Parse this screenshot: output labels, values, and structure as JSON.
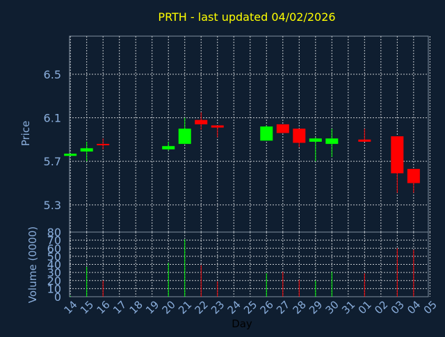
{
  "chart_data": {
    "type": "candlestick",
    "title": "PRTH - last updated 04/02/2026",
    "xlabel": "Day",
    "price_axis": {
      "ylabel": "Price",
      "ylim": [
        5.05,
        6.85
      ],
      "ticks": [
        5.3,
        5.7,
        6.1,
        6.5
      ],
      "tick_labels": [
        "5.3",
        "5.7",
        "6.1",
        "6.5"
      ]
    },
    "volume_axis": {
      "ylabel": "Volume (0000)",
      "ylim": [
        0,
        80
      ],
      "ticks": [
        0,
        10,
        20,
        30,
        40,
        50,
        60,
        70,
        80
      ],
      "tick_labels": [
        "0",
        "10",
        "20",
        "30",
        "40",
        "50",
        "60",
        "70",
        "80"
      ]
    },
    "x_ticks": [
      "14",
      "15",
      "16",
      "17",
      "18",
      "19",
      "20",
      "21",
      "22",
      "23",
      "24",
      "25",
      "26",
      "27",
      "28",
      "29",
      "30",
      "31",
      "01",
      "02",
      "03",
      "04",
      "05"
    ],
    "x_range": [
      -0.05,
      21.9
    ],
    "grid": true,
    "colors": {
      "background": "#0f1e30",
      "plot_border": "#8090a0",
      "grid": "#c8ccd0",
      "title": "#ffff00",
      "axis_text": "#8aaedc",
      "label_text": "#000000",
      "up": "#00ff00",
      "down": "#ff0000"
    },
    "candles": [
      {
        "x": 0,
        "open": 5.75,
        "close": 5.77,
        "high": 5.77,
        "low": 5.75,
        "direction": "up"
      },
      {
        "x": 1,
        "open": 5.79,
        "close": 5.82,
        "high": 5.88,
        "low": 5.7,
        "direction": "up"
      },
      {
        "x": 2,
        "open": 5.86,
        "close": 5.85,
        "high": 5.91,
        "low": 5.81,
        "direction": "down"
      },
      {
        "x": 6,
        "open": 5.81,
        "close": 5.84,
        "high": 5.88,
        "low": 5.8,
        "direction": "up"
      },
      {
        "x": 7,
        "open": 5.86,
        "close": 6.0,
        "high": 6.1,
        "low": 5.86,
        "direction": "up"
      },
      {
        "x": 8,
        "open": 6.08,
        "close": 6.04,
        "high": 6.15,
        "low": 5.99,
        "direction": "down"
      },
      {
        "x": 9,
        "open": 6.03,
        "close": 6.01,
        "high": 6.03,
        "low": 5.92,
        "direction": "down"
      },
      {
        "x": 12,
        "open": 5.89,
        "close": 6.02,
        "high": 6.03,
        "low": 5.89,
        "direction": "up"
      },
      {
        "x": 13,
        "open": 6.04,
        "close": 5.96,
        "high": 6.04,
        "low": 5.96,
        "direction": "down"
      },
      {
        "x": 14,
        "open": 6.0,
        "close": 5.87,
        "high": 6.0,
        "low": 5.83,
        "direction": "down"
      },
      {
        "x": 15,
        "open": 5.88,
        "close": 5.91,
        "high": 5.92,
        "low": 5.7,
        "direction": "up"
      },
      {
        "x": 16,
        "open": 5.86,
        "close": 5.91,
        "high": 6.0,
        "low": 5.74,
        "direction": "up"
      },
      {
        "x": 18,
        "open": 5.9,
        "close": 5.88,
        "high": 6.0,
        "low": 5.88,
        "direction": "down"
      },
      {
        "x": 20,
        "open": 5.93,
        "close": 5.59,
        "high": 5.93,
        "low": 5.41,
        "direction": "down"
      },
      {
        "x": 21,
        "open": 5.63,
        "close": 5.5,
        "high": 5.63,
        "low": 5.41,
        "direction": "down"
      }
    ],
    "volume": [
      {
        "x": 0,
        "value": 1,
        "direction": "up"
      },
      {
        "x": 1,
        "value": 37,
        "direction": "up"
      },
      {
        "x": 2,
        "value": 20,
        "direction": "down"
      },
      {
        "x": 6,
        "value": 42,
        "direction": "up"
      },
      {
        "x": 7,
        "value": 71,
        "direction": "up"
      },
      {
        "x": 8,
        "value": 39,
        "direction": "down"
      },
      {
        "x": 9,
        "value": 19,
        "direction": "down"
      },
      {
        "x": 12,
        "value": 29,
        "direction": "up"
      },
      {
        "x": 13,
        "value": 31,
        "direction": "down"
      },
      {
        "x": 14,
        "value": 21,
        "direction": "down"
      },
      {
        "x": 15,
        "value": 20,
        "direction": "up"
      },
      {
        "x": 16,
        "value": 31,
        "direction": "up"
      },
      {
        "x": 18,
        "value": 29,
        "direction": "down"
      },
      {
        "x": 20,
        "value": 60,
        "direction": "down"
      },
      {
        "x": 21,
        "value": 58,
        "direction": "down"
      }
    ]
  }
}
